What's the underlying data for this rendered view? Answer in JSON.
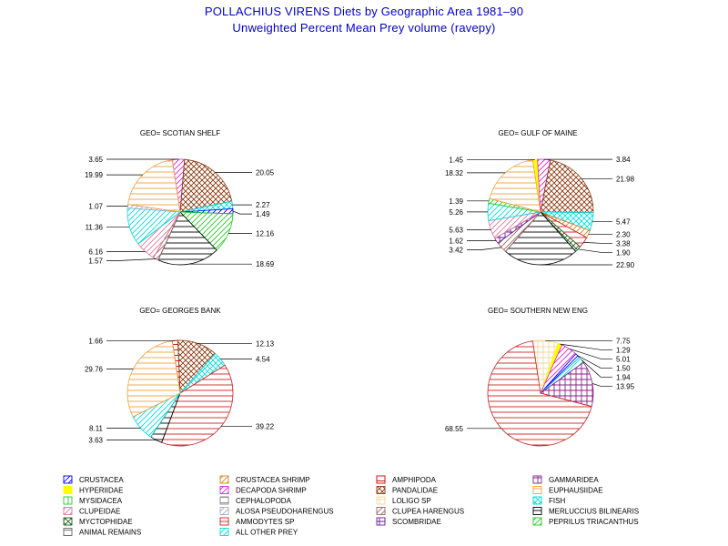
{
  "title": "POLLACHIUS VIRENS Diets by Geographic Area 1981–90",
  "subtitle": "Unweighted Percent Mean Prey volume (ravepy)",
  "chart_data": [
    {
      "type": "pie",
      "panel": "top-left",
      "title": "GEO= SCOTIAN SHELF",
      "slices": [
        {
          "category": "DECAPODA SHRIMP",
          "value": 3.65,
          "label": "3.65"
        },
        {
          "category": "PANDALIDAE",
          "value": 20.05,
          "label": "20.05"
        },
        {
          "category": "FISH",
          "value": 2.27,
          "label": "2.27"
        },
        {
          "category": "CRUSTACEA",
          "value": 1.49,
          "label": "1.49"
        },
        {
          "category": "PEPRILUS TRIACANTHUS",
          "value": 12.16,
          "label": "12.16"
        },
        {
          "category": "MERLUCCIUS BILINEARIS",
          "value": 18.69,
          "label": "18.69"
        },
        {
          "category": "CLUPEA HARENGUS",
          "value": 1.57,
          "label": "1.57"
        },
        {
          "category": "CLUPEIDAE",
          "value": 6.16,
          "label": "6.16"
        },
        {
          "category": "ALL OTHER PREY",
          "value": 11.36,
          "label": "11.36"
        },
        {
          "category": "ALOSA PSEUDOHARENGUS",
          "value": 1.07,
          "label": "1.07"
        },
        {
          "category": "EUPHAUSIIDAE",
          "value": 19.99,
          "label": "19.99"
        }
      ]
    },
    {
      "type": "pie",
      "panel": "top-right",
      "title": "GEO= GULF OF MAINE",
      "slices": [
        {
          "category": "HYPERIIDAE",
          "value": 1.45,
          "label": "1.45"
        },
        {
          "category": "DECAPODA SHRIMP",
          "value": 3.84,
          "label": "3.84"
        },
        {
          "category": "PANDALIDAE",
          "value": 21.98,
          "label": "21.98"
        },
        {
          "category": "FISH",
          "value": 5.47,
          "label": "5.47"
        },
        {
          "category": "CRUSTACEA SHRIMP",
          "value": 2.3,
          "label": "2.30"
        },
        {
          "category": "AMMODYTES SP",
          "value": 3.38,
          "label": "3.38"
        },
        {
          "category": "MYCTOPHIDAE",
          "value": 1.9,
          "label": "1.90"
        },
        {
          "category": "MERLUCCIUS BILINEARIS",
          "value": 22.9,
          "label": "22.90"
        },
        {
          "category": "CLUPEA HARENGUS",
          "value": 3.42,
          "label": "3.42"
        },
        {
          "category": "SCOMBRIDAE",
          "value": 1.62,
          "label": "1.62"
        },
        {
          "category": "CLUPEIDAE",
          "value": 5.63,
          "label": "5.63"
        },
        {
          "category": "ALL OTHER PREY",
          "value": 5.26,
          "label": "5.26"
        },
        {
          "category": "PEPRILUS TRIACANTHUS",
          "value": 1.39,
          "label": "1.39"
        },
        {
          "category": "EUPHAUSIIDAE",
          "value": 18.32,
          "label": "18.32"
        }
      ]
    },
    {
      "type": "pie",
      "panel": "bottom-left",
      "title": "GEO= GEORGES BANK",
      "slices": [
        {
          "category": "AMPHIPODA",
          "value": 1.66,
          "label": "1.66"
        },
        {
          "category": "PANDALIDAE",
          "value": 12.13,
          "label": "12.13"
        },
        {
          "category": "FISH",
          "value": 4.54,
          "label": "4.54"
        },
        {
          "category": "AMMODYTES SP",
          "value": 39.22,
          "label": "39.22"
        },
        {
          "category": "MERLUCCIUS BILINEARIS",
          "value": 3.63,
          "label": "3.63"
        },
        {
          "category": "ALL OTHER PREY",
          "value": 8.11,
          "label": "8.11"
        },
        {
          "category": "EUPHAUSIIDAE",
          "value": 29.76,
          "label": "29.76"
        }
      ]
    },
    {
      "type": "pie",
      "panel": "bottom-right",
      "title": "GEO= SOUTHERN NEW ENG",
      "slices": [
        {
          "category": "LOLIGO SP",
          "value": 7.75,
          "label": "7.75"
        },
        {
          "category": "HYPERIIDAE",
          "value": 1.29,
          "label": "1.29"
        },
        {
          "category": "DECAPODA SHRIMP",
          "value": 5.01,
          "label": "5.01"
        },
        {
          "category": "CRUSTACEA",
          "value": 1.5,
          "label": "1.50"
        },
        {
          "category": "ALL OTHER PREY",
          "value": 1.94,
          "label": "1.94"
        },
        {
          "category": "GAMMARIDEA",
          "value": 13.95,
          "label": "13.95"
        },
        {
          "category": "AMMODYTES SP",
          "value": 68.55,
          "label": "68.55"
        }
      ]
    }
  ],
  "legend": [
    {
      "label": "CRUSTACEA",
      "color": "#0000ff",
      "pattern": "diag"
    },
    {
      "label": "CRUSTACEA SHRIMP",
      "color": "#e08020",
      "pattern": "diag"
    },
    {
      "label": "AMPHIPODA",
      "color": "#cc0000",
      "pattern": "box"
    },
    {
      "label": "GAMMARIDEA",
      "color": "#882288",
      "pattern": "grid"
    },
    {
      "label": "HYPERIIDAE",
      "color": "#ffff00",
      "pattern": "solid"
    },
    {
      "label": "DECAPODA SHRIMP",
      "color": "#dd22dd",
      "pattern": "diag"
    },
    {
      "label": "PANDALIDAE",
      "color": "#8b3a10",
      "pattern": "xhatch"
    },
    {
      "label": "EUPHAUSIIDAE",
      "color": "#f0a040",
      "pattern": "horiz"
    },
    {
      "label": "MYSIDACEA",
      "color": "#22cc22",
      "pattern": "vert"
    },
    {
      "label": "CEPHALOPODA",
      "color": "#888888",
      "pattern": "box"
    },
    {
      "label": "LOLIGO SP",
      "color": "#f0d8a0",
      "pattern": "grid"
    },
    {
      "label": "FISH",
      "color": "#00dddd",
      "pattern": "xhatch"
    },
    {
      "label": "CLUPEIDAE",
      "color": "#dd7799",
      "pattern": "diag"
    },
    {
      "label": "ALOSA PSEUDOHARENGUS",
      "color": "#aaaacc",
      "pattern": "diag"
    },
    {
      "label": "CLUPEA HARENGUS",
      "color": "#996666",
      "pattern": "diag"
    },
    {
      "label": "MERLUCCIUS BILINEARIS",
      "color": "#000000",
      "pattern": "horiz"
    },
    {
      "label": "MYCTOPHIDAE",
      "color": "#226622",
      "pattern": "xhatch"
    },
    {
      "label": "AMMODYTES SP",
      "color": "#cc2222",
      "pattern": "horiz"
    },
    {
      "label": "SCOMBRIDAE",
      "color": "#662299",
      "pattern": "grid"
    },
    {
      "label": "PEPRILUS TRIACANTHUS",
      "color": "#22cc22",
      "pattern": "diag"
    },
    {
      "label": "ANIMAL REMAINS",
      "color": "#666666",
      "pattern": "box"
    },
    {
      "label": "ALL OTHER PREY",
      "color": "#00dddd",
      "pattern": "diag"
    }
  ]
}
